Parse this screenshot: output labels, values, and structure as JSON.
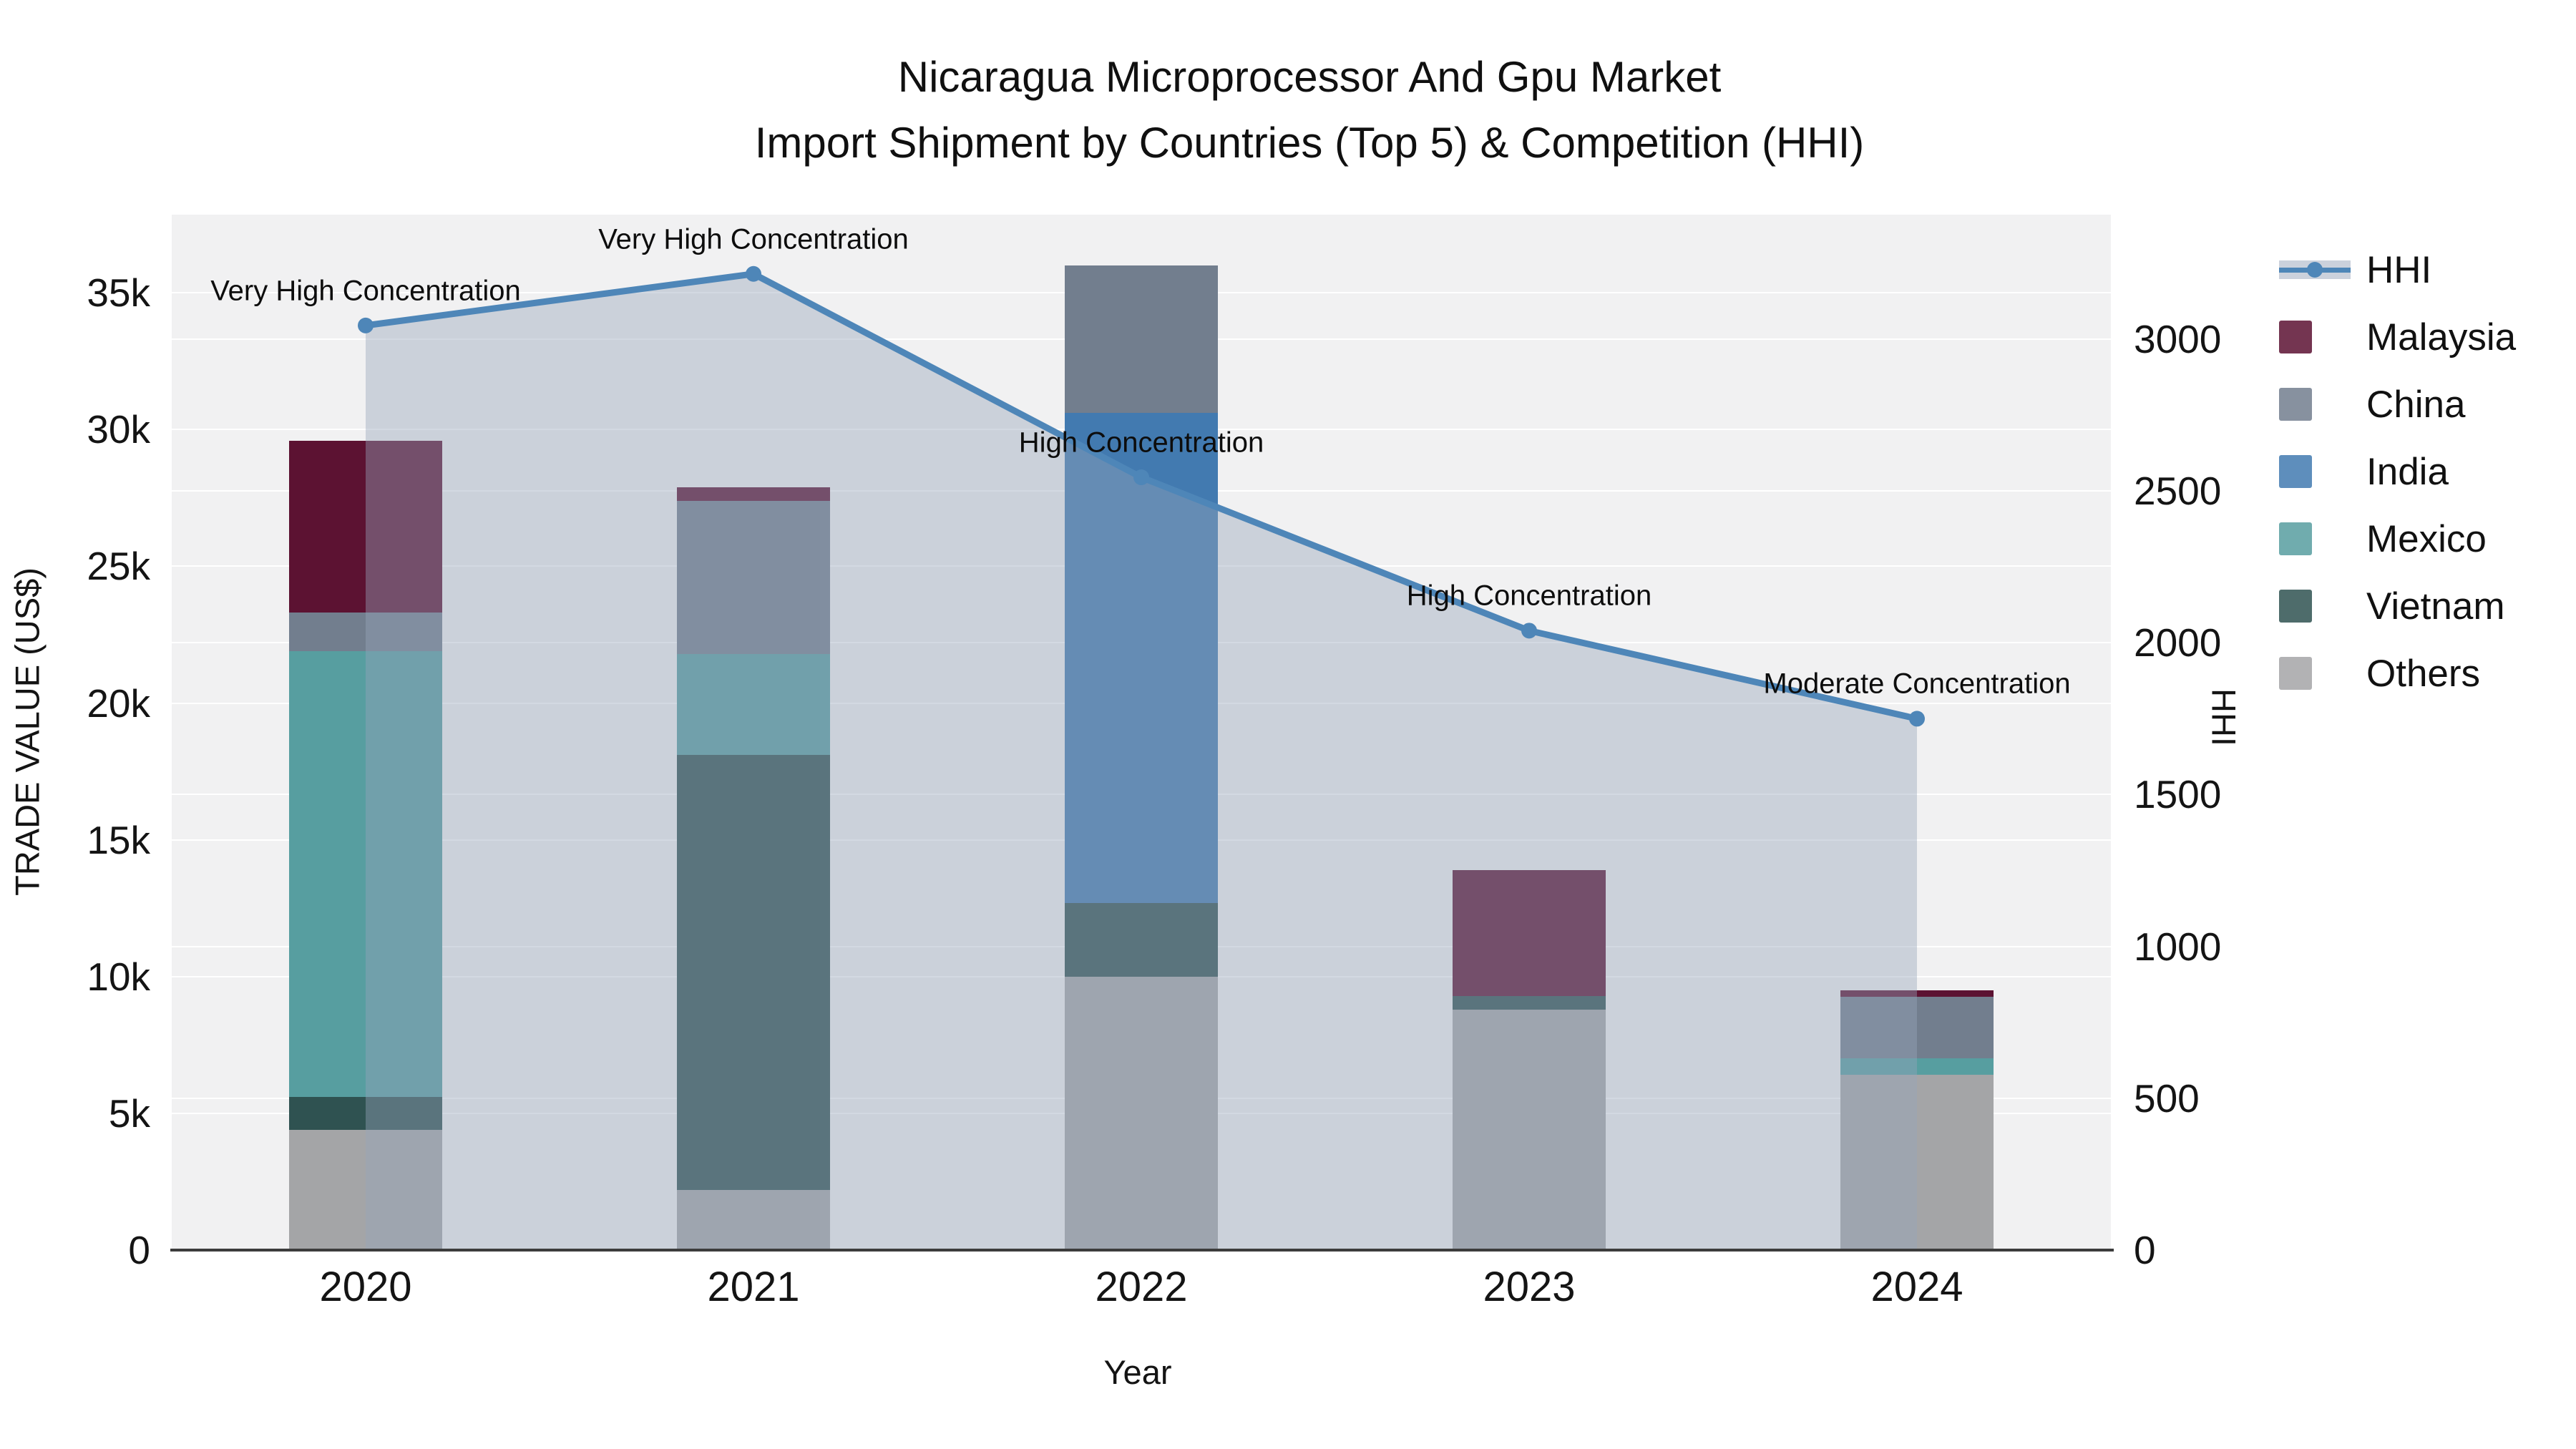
{
  "title": {
    "line1": "Nicaragua Microprocessor And Gpu Market",
    "line2": "Import Shipment by Countries (Top 5) & Competition (HHI)"
  },
  "chart_data": {
    "type": "bar",
    "stacked": true,
    "categories": [
      "2020",
      "2021",
      "2022",
      "2023",
      "2024"
    ],
    "series": [
      {
        "name": "Malaysia",
        "color": "#5C1232",
        "values": [
          6300,
          500,
          0,
          4600,
          250
        ]
      },
      {
        "name": "China",
        "color": "#727E8E",
        "values": [
          1400,
          5600,
          5400,
          0,
          2250
        ]
      },
      {
        "name": "India",
        "color": "#427AB0",
        "values": [
          0,
          0,
          17900,
          0,
          0
        ]
      },
      {
        "name": "Mexico",
        "color": "#579EA0",
        "values": [
          16300,
          3700,
          0,
          0,
          600
        ]
      },
      {
        "name": "Vietnam",
        "color": "#2F5251",
        "values": [
          1200,
          15900,
          2700,
          500,
          0
        ]
      },
      {
        "name": "Others",
        "color": "#A4A5A7",
        "values": [
          4400,
          2200,
          10000,
          8800,
          6400
        ]
      }
    ],
    "stack_order_bottom_to_top": [
      "Others",
      "Vietnam",
      "Mexico",
      "India",
      "China",
      "Malaysia"
    ],
    "line_series": {
      "name": "HHI",
      "values": [
        3045,
        3215,
        2545,
        2040,
        1750
      ],
      "color": "#4E86B8",
      "area_color": "rgba(151,164,186,0.42)",
      "axis": "right"
    },
    "annotations": [
      "Very High Concentration",
      "Very High Concentration",
      "High Concentration",
      "High Concentration",
      "Moderate Concentration"
    ],
    "left_axis": {
      "title": "TRADE VALUE (US$)",
      "tick_labels": [
        "0",
        "5k",
        "10k",
        "15k",
        "20k",
        "25k",
        "30k",
        "35k"
      ],
      "tick_values": [
        0,
        5000,
        10000,
        15000,
        20000,
        25000,
        30000,
        35000
      ],
      "plot_max": 37855
    },
    "right_axis": {
      "title": "HHI",
      "tick_labels": [
        "0",
        "500",
        "1000",
        "1500",
        "2000",
        "2500",
        "3000"
      ],
      "tick_values": [
        0,
        500,
        1000,
        1500,
        2000,
        2500,
        3000
      ],
      "plot_max": 3410
    },
    "x_axis": {
      "title": "Year"
    },
    "legend_order": [
      "HHI",
      "Malaysia",
      "China",
      "India",
      "Mexico",
      "Vietnam",
      "Others"
    ],
    "legend_position": "right",
    "grid": true,
    "plot_background": "#f1f1f2"
  }
}
